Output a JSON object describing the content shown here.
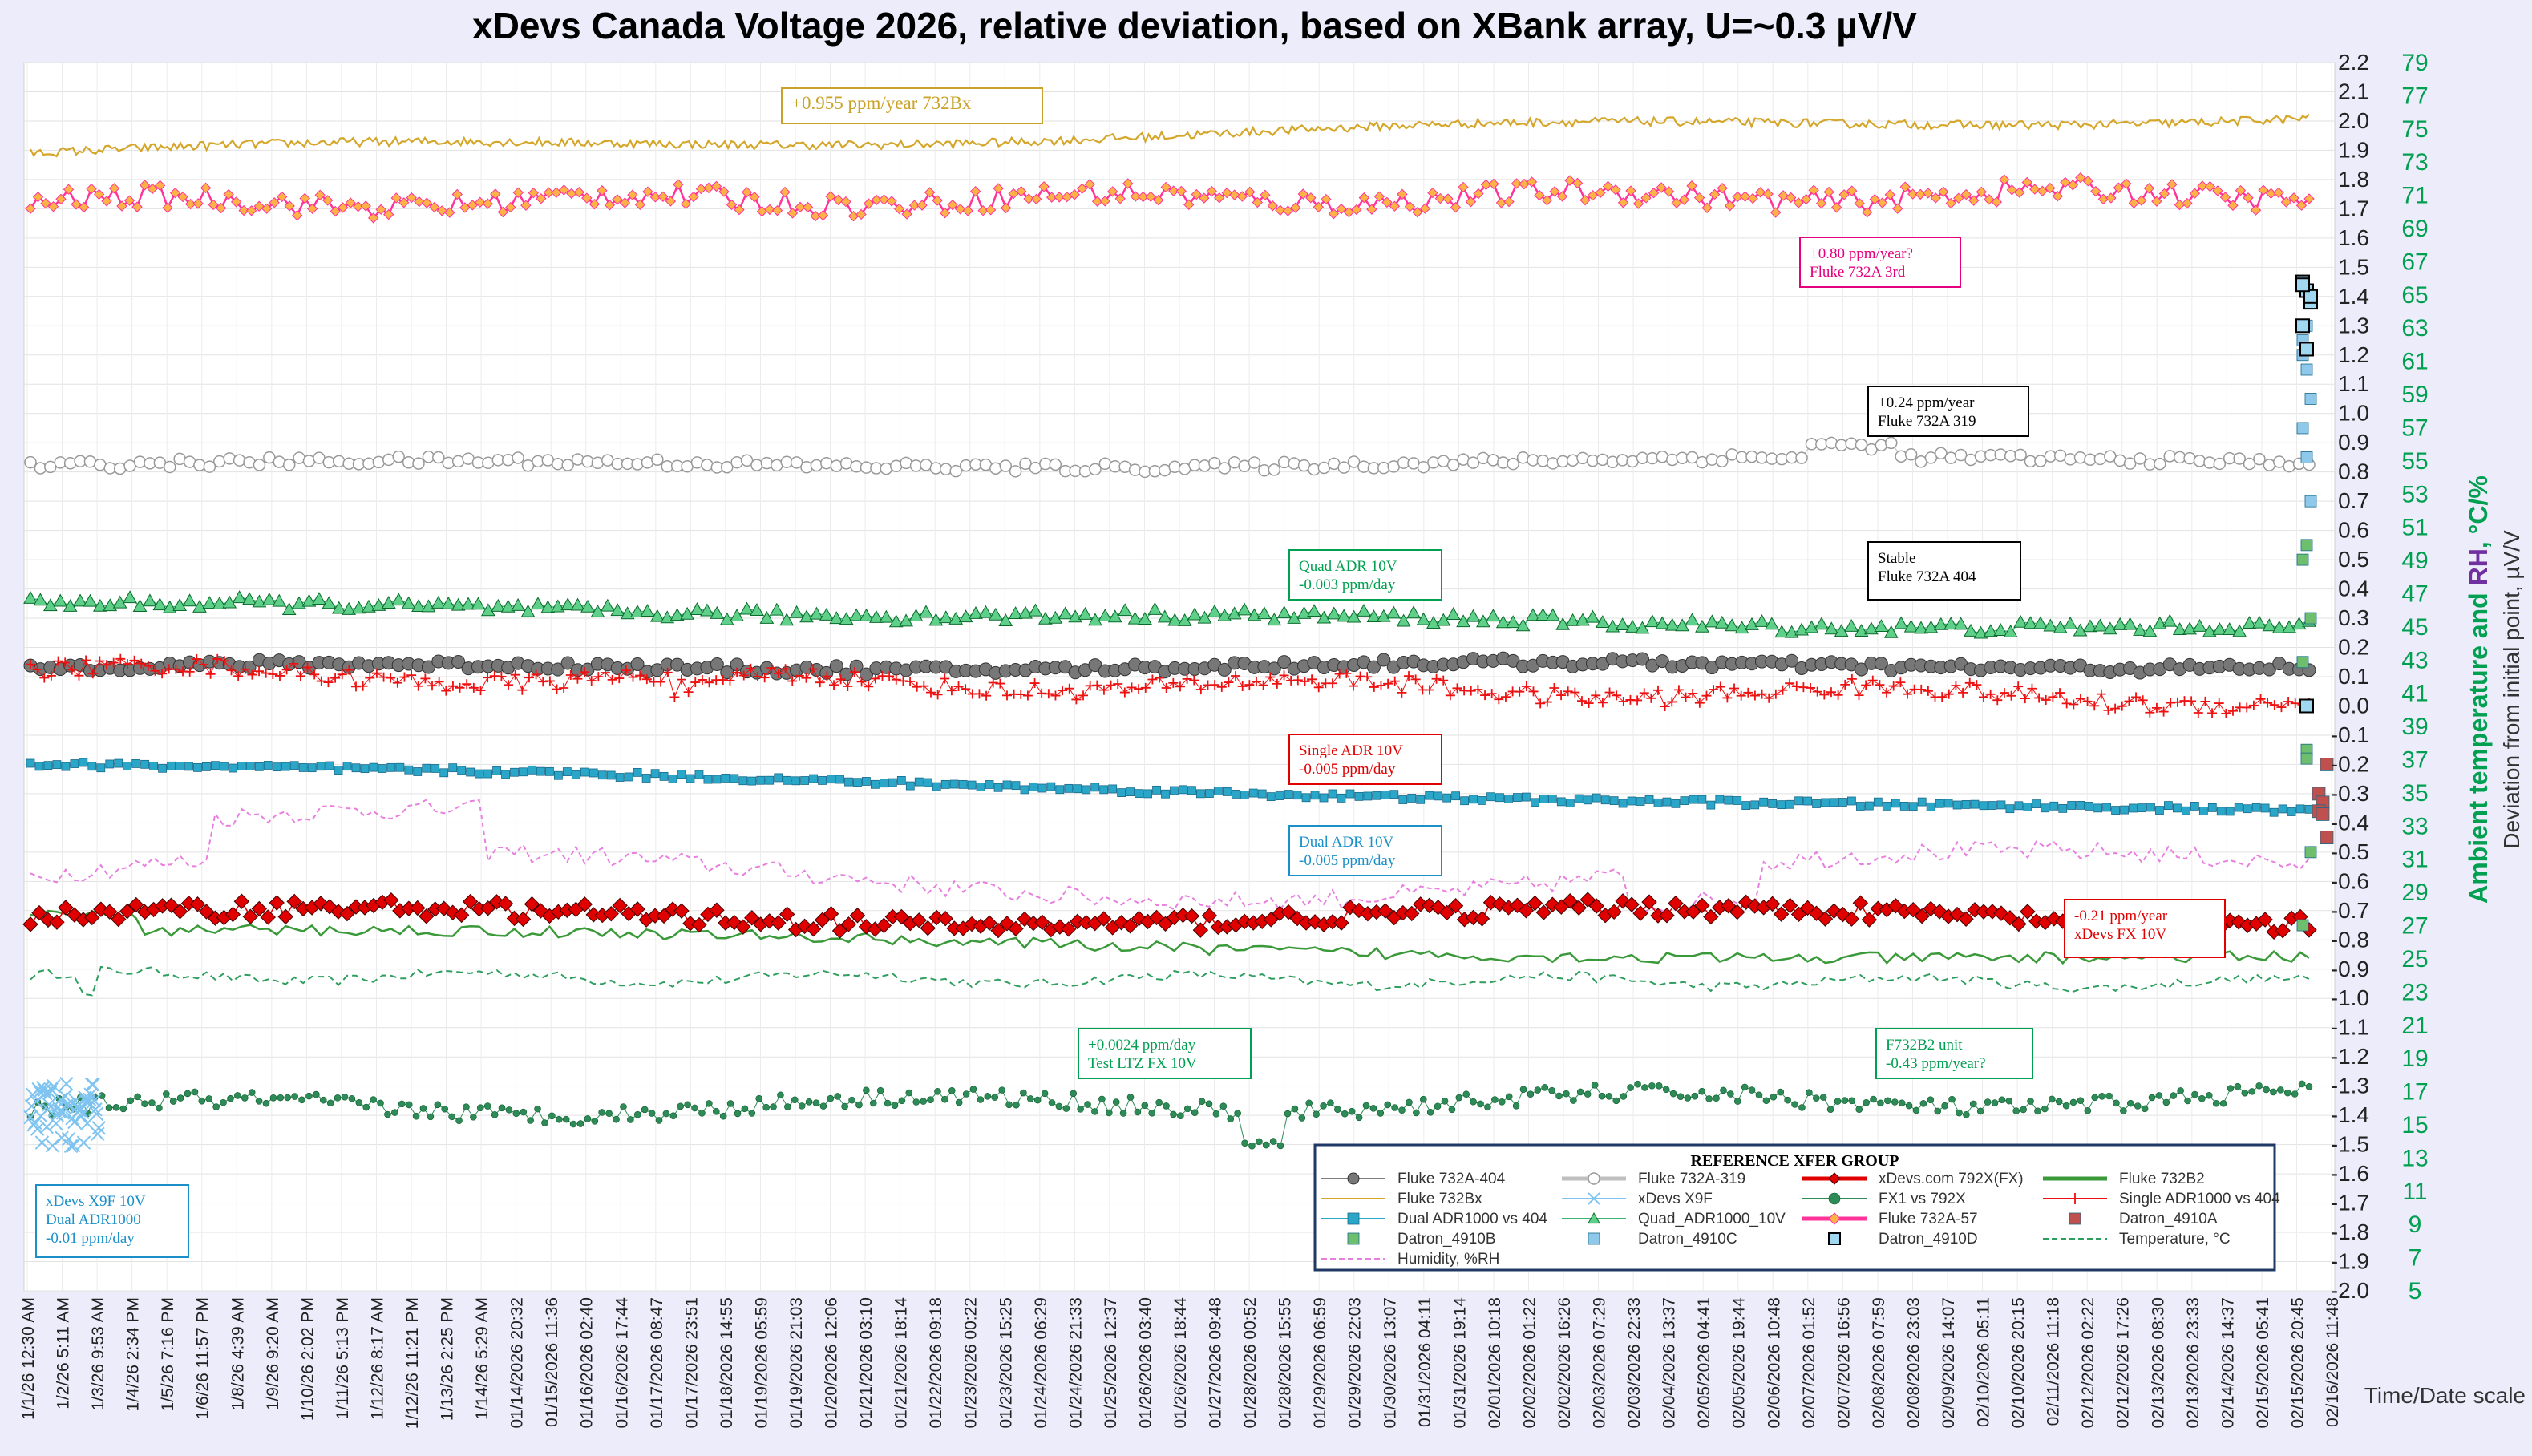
{
  "chart_data": {
    "type": "line",
    "title": "xDevs Canada Voltage 2026, relative deviation, based on XBank array, U=~0.3 µV/V",
    "ylabel_left": "Deviation from initial point, µV/V",
    "ylabel_right_parts": [
      "Ambient temperature",
      " and ",
      "RH",
      ", °C/%"
    ],
    "xlabel": "Time/Date scale",
    "ylim": [
      -2.0,
      2.2
    ],
    "yticks": [
      "2.2",
      "2.1",
      "2.0",
      "1.9",
      "1.8",
      "1.7",
      "1.6",
      "1.5",
      "1.4",
      "1.3",
      "1.2",
      "1.1",
      "1.0",
      "0.9",
      "0.8",
      "0.7",
      "0.6",
      "0.5",
      "0.4",
      "0.3",
      "0.2",
      "0.1",
      "0.0",
      "-0.1",
      "-0.2",
      "-0.3",
      "-0.4",
      "-0.5",
      "-0.6",
      "-0.7",
      "-0.8",
      "-0.9",
      "-1.0",
      "-1.1",
      "-1.2",
      "-1.3",
      "-1.4",
      "-1.5",
      "-1.6",
      "-1.7",
      "-1.8",
      "-1.9",
      "-2.0"
    ],
    "y2lim": [
      5,
      79
    ],
    "y2ticks": [
      "79",
      "77",
      "75",
      "73",
      "71",
      "69",
      "67",
      "65",
      "63",
      "61",
      "59",
      "57",
      "55",
      "53",
      "51",
      "49",
      "47",
      "45",
      "43",
      "41",
      "39",
      "37",
      "35",
      "33",
      "31",
      "29",
      "27",
      "25",
      "23",
      "21",
      "19",
      "17",
      "15",
      "13",
      "11",
      "9",
      "7",
      "5"
    ],
    "x_tick_labels": [
      "1/1/26 12:30 AM",
      "1/2/26 5:11 AM",
      "1/3/26 9:53 AM",
      "1/4/26 2:34 PM",
      "1/5/26 7:16 PM",
      "1/6/26 11:57 PM",
      "1/8/26 4:39 AM",
      "1/9/26 9:20 AM",
      "1/10/26 2:02 PM",
      "1/11/26 5:13 PM",
      "1/12/26 8:17 AM",
      "1/12/26 11:21 PM",
      "1/13/26 2:25 PM",
      "1/14/26 5:29 AM",
      "01/14/2026 20:32",
      "01/15/2026 11:36",
      "01/16/2026 02:40",
      "01/16/2026 17:44",
      "01/17/2026 08:47",
      "01/17/2026 23:51",
      "01/18/2026 14:55",
      "01/19/2026 05:59",
      "01/19/2026 21:03",
      "01/20/2026 12:06",
      "01/21/2026 03:10",
      "01/21/2026 18:14",
      "01/22/2026 09:18",
      "01/23/2026 00:22",
      "01/23/2026 15:25",
      "01/24/2026 06:29",
      "01/24/2026 21:33",
      "01/25/2026 12:37",
      "01/26/2026 03:40",
      "01/26/2026 18:44",
      "01/27/2026 09:48",
      "01/28/2026 00:52",
      "01/28/2026 15:55",
      "01/29/2026 06:59",
      "01/29/2026 22:03",
      "01/30/2026 13:07",
      "01/31/2026 04:11",
      "01/31/2026 19:14",
      "02/01/2026 10:18",
      "02/02/2026 01:22",
      "02/02/2026 16:26",
      "02/03/2026 07:29",
      "02/03/2026 22:33",
      "02/04/2026 13:37",
      "02/05/2026 04:41",
      "02/05/2026 19:44",
      "02/06/2026 10:48",
      "02/07/2026 01:52",
      "02/07/2026 16:56",
      "02/08/2026 07:59",
      "02/08/2026 23:03",
      "02/09/2026 14:07",
      "02/10/2026 05:11",
      "02/10/2026 20:15",
      "02/11/2026 11:18",
      "02/12/2026 02:22",
      "02/12/2026 17:26",
      "02/13/2026 08:30",
      "02/13/2026 23:33",
      "02/14/2026 14:37",
      "02/15/2026 05:41",
      "02/15/2026 20:45",
      "02/16/2026 11:48"
    ],
    "series": [
      {
        "name": "Fluke 732A-404",
        "color": "#7f7f7f",
        "marker": "circle",
        "axis": "y",
        "start": 0.13,
        "end": 0.14,
        "noise": 0.015
      },
      {
        "name": "Fluke 732A-319",
        "color": "#bfbfbf",
        "marker": "circle-open",
        "axis": "y",
        "start": 0.82,
        "end": 0.84,
        "noise": 0.015
      },
      {
        "name": "xDevs.com 792X(FX)",
        "color": "#e00000",
        "marker": "diamond",
        "axis": "y",
        "start": -0.72,
        "end": -0.72,
        "noise": 0.03
      },
      {
        "name": "Fluke 732B2",
        "color": "#3a9a3a",
        "marker": "none",
        "axis": "y",
        "start": -0.72,
        "end": -0.82,
        "noise": 0.02
      },
      {
        "name": "Fluke 732Bx",
        "color": "#d4a62a",
        "marker": "none",
        "axis": "y",
        "start": 1.89,
        "end": 2.02,
        "noise": 0.015
      },
      {
        "name": "xDevs X9F",
        "color": "#7fc4f0",
        "marker": "x",
        "axis": "y",
        "start": -1.38,
        "end": -1.42,
        "noise": 0.05
      },
      {
        "name": "FX1 vs 792X",
        "color": "#2e8b57",
        "marker": "dot",
        "axis": "y",
        "start": -1.38,
        "end": -1.34,
        "noise": 0.03
      },
      {
        "name": "Single ADR1000 vs 404",
        "color": "#ee1111",
        "marker": "plus",
        "axis": "y",
        "start": 0.12,
        "end": 0.02,
        "noise": 0.03
      },
      {
        "name": "Dual ADR1000 vs 404",
        "color": "#2aa6c8",
        "marker": "square",
        "axis": "y",
        "start": -0.2,
        "end": -0.37,
        "noise": 0.01
      },
      {
        "name": "Quad_ADR1000_10V",
        "color": "#3cb371",
        "marker": "triangle",
        "axis": "y",
        "start": 0.35,
        "end": 0.26,
        "noise": 0.02
      },
      {
        "name": "Fluke 732A-57",
        "color": "#ff3399",
        "marker": "diamond-small",
        "axis": "y",
        "start": 1.72,
        "end": 1.75,
        "noise": 0.04
      },
      {
        "name": "Datron_4910A",
        "color": "#c0504d",
        "marker": "square",
        "axis": "y"
      },
      {
        "name": "Datron_4910B",
        "color": "#6dbf6d",
        "marker": "square",
        "axis": "y"
      },
      {
        "name": "Datron_4910C",
        "color": "#8ec8ea",
        "marker": "square",
        "axis": "y"
      },
      {
        "name": "Datron_4910D",
        "color": "#1b6a8a",
        "marker": "square-open",
        "axis": "y"
      },
      {
        "name": "Temperature, °C",
        "color": "#2e9e5e",
        "marker": "dashed",
        "axis": "y2",
        "start": 24,
        "end": 23.5,
        "noise": 0.3
      },
      {
        "name": "Humidity, %RH",
        "color": "#e87fe0",
        "marker": "dashed",
        "axis": "y2",
        "start": 30,
        "end": 30,
        "noise": 0.6
      }
    ],
    "annotations": [
      {
        "lines": [
          "+0.955 ppm/year 732Bx"
        ],
        "color": "#c9a227"
      },
      {
        "lines": [
          "+0.80 ppm/year?",
          "Fluke 732A 3rd"
        ],
        "color": "#e4007f"
      },
      {
        "lines": [
          "+0.24 ppm/year",
          "Fluke 732A 319"
        ],
        "color": "#000000"
      },
      {
        "lines": [
          "Quad ADR 10V",
          "-0.003 ppm/day"
        ],
        "color": "#00a050"
      },
      {
        "lines": [
          "Stable",
          "Fluke 732A 404"
        ],
        "color": "#000000"
      },
      {
        "lines": [
          "Single ADR 10V",
          "-0.005 ppm/day"
        ],
        "color": "#e00000"
      },
      {
        "lines": [
          "Dual ADR 10V",
          "-0.005 ppm/day"
        ],
        "color": "#1a8fc8"
      },
      {
        "lines": [
          "-0.21 ppm/year",
          "xDevs FX 10V"
        ],
        "color": "#e00000"
      },
      {
        "lines": [
          "+0.0024 ppm/day",
          "Test LTZ FX 10V"
        ],
        "color": "#00a050"
      },
      {
        "lines": [
          "F732B2 unit",
          "-0.43 ppm/year?"
        ],
        "color": "#00a050"
      },
      {
        "lines": [
          "xDevs X9F 10V",
          "Dual ADR1000",
          "-0.01 ppm/day"
        ],
        "color": "#1a8fc8"
      }
    ],
    "legend_title": "REFERENCE XFER GROUP",
    "legend_position": "bottom-right",
    "grid": true
  }
}
